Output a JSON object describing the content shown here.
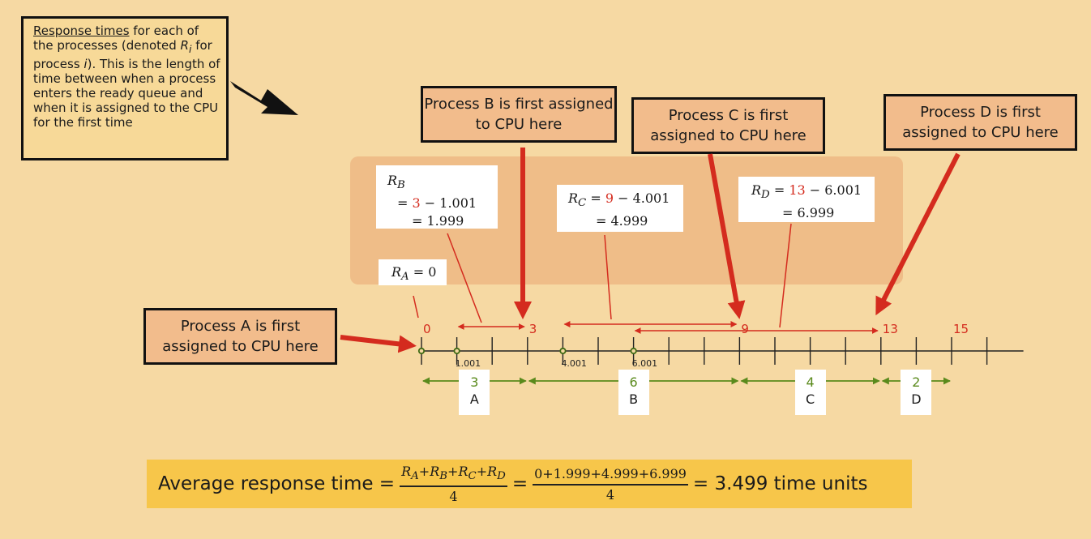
{
  "note": {
    "underlined": "Response times",
    "text_a": " for each of the processes (denoted ",
    "var_name": "R",
    "var_sub": "i",
    "text_b": " for process ",
    "var_proc": "i",
    "text_c": "). This is the length of time between when a process enters the ready queue and when it is assigned to the CPU for the first time"
  },
  "callouts": {
    "a": "Process A is first assigned to CPU here",
    "b": "Process B is first assigned to CPU here",
    "c": "Process C is first assigned to CPU here",
    "d": "Process D is first assigned to CPU here"
  },
  "formulas": {
    "ra": {
      "sub": "A",
      "text": " = 0"
    },
    "rb": {
      "sub": "B",
      "eq": "= ",
      "start": "3",
      "rest": " − 1.001",
      "result": "= 1.999"
    },
    "rc": {
      "sub": "C",
      "eq": " = ",
      "start": "9",
      "rest": " − 4.001",
      "result": "= 4.999"
    },
    "rd": {
      "sub": "D",
      "eq": " = ",
      "start": "13",
      "rest": " − 6.001",
      "result": "= 6.999"
    }
  },
  "timeline": {
    "ticks": 17,
    "red_labels": [
      {
        "t": 0,
        "label": "0"
      },
      {
        "t": 3,
        "label": "3"
      },
      {
        "t": 9,
        "label": "9"
      },
      {
        "t": 13,
        "label": "13"
      },
      {
        "t": 15,
        "label": "15"
      }
    ],
    "arrivals": [
      {
        "t": 0,
        "label": ""
      },
      {
        "t": 1.001,
        "label": "1.001"
      },
      {
        "t": 4.001,
        "label": "4.001"
      },
      {
        "t": 6.001,
        "label": "6.001"
      }
    ],
    "bursts": [
      {
        "process": "A",
        "start": 0,
        "end": 3,
        "duration": "3"
      },
      {
        "process": "B",
        "start": 3,
        "end": 9,
        "duration": "6"
      },
      {
        "process": "C",
        "start": 9,
        "end": 13,
        "duration": "4"
      },
      {
        "process": "D",
        "start": 13,
        "end": 15,
        "duration": "2"
      }
    ],
    "waits": [
      {
        "from": 1.001,
        "to": 3
      },
      {
        "from": 4.001,
        "to": 9
      },
      {
        "from": 6.001,
        "to": 13
      }
    ]
  },
  "average": {
    "label": "Average response time =",
    "sym_num": "R",
    "subs": [
      "A",
      "B",
      "C",
      "D"
    ],
    "den": "4",
    "num_values": "0+1.999+4.999+6.999",
    "den_values": "4",
    "eq": "=",
    "result": "= 3.499 time units"
  },
  "colors": {
    "red": "#d42b1e",
    "green": "#5a8a1c",
    "dark": "#111111"
  }
}
